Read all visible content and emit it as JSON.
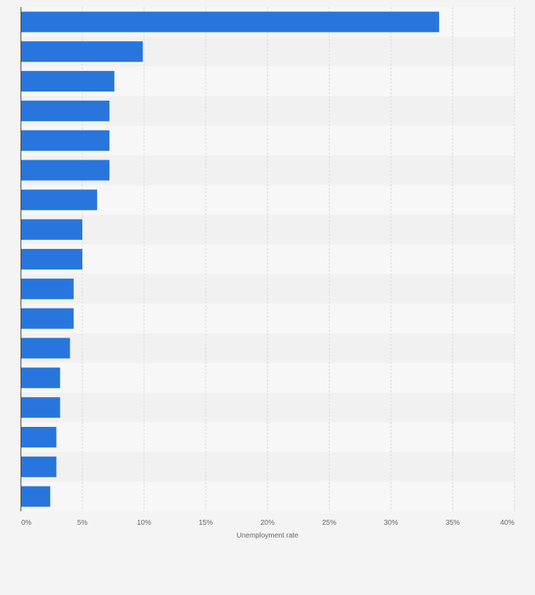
{
  "chart_data": {
    "type": "bar",
    "orientation": "horizontal",
    "values": [
      33.9,
      9.9,
      7.6,
      7.2,
      7.2,
      7.2,
      6.2,
      5.0,
      5.0,
      4.3,
      4.3,
      4.0,
      3.2,
      3.2,
      2.9,
      2.9,
      2.4
    ],
    "xlabel": "Unemployment rate",
    "xlim": [
      0,
      40
    ],
    "x_ticks": [
      "0%",
      "5%",
      "10%",
      "15%",
      "20%",
      "25%",
      "30%",
      "35%",
      "40%"
    ],
    "grid": "vertical dashed",
    "colors": {
      "bar": "#2876dd",
      "band_light": "#f7f7f7",
      "band_dark": "#f1f1f1",
      "grid": "#d6d6d6",
      "axis": "#3d3d3d",
      "text": "#666666",
      "background": "#f4f4f4"
    }
  }
}
